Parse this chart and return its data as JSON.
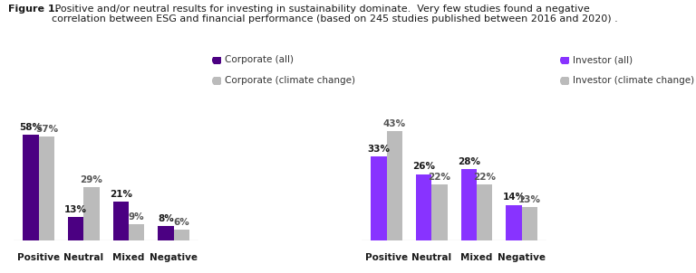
{
  "title_bold": "Figure 1.",
  "title_rest": " Positive and/or neutral results for investing in sustainability dominate.  Very few studies found a negative\ncorrelation between ESG and financial performance (based on 245 studies published between 2016 and 2020) .",
  "categories": [
    "Positive",
    "Neutral",
    "Mixed",
    "Negative"
  ],
  "corporate_all": [
    58,
    13,
    21,
    8
  ],
  "corporate_climate": [
    57,
    29,
    9,
    6
  ],
  "investor_all": [
    33,
    26,
    28,
    14
  ],
  "investor_climate": [
    43,
    22,
    22,
    13
  ],
  "color_corporate": "#4B0082",
  "color_investor": "#8833FF",
  "color_climate": "#BBBBBB",
  "legend_left": [
    "Corporate (all)",
    "Corporate (climate change)"
  ],
  "legend_right": [
    "Investor (all)",
    "Investor (climate change)"
  ],
  "background": "#FFFFFF",
  "title_fontsize": 8.0,
  "label_fontsize": 7.5,
  "value_fontsize": 7.5,
  "legend_fontsize": 7.5
}
